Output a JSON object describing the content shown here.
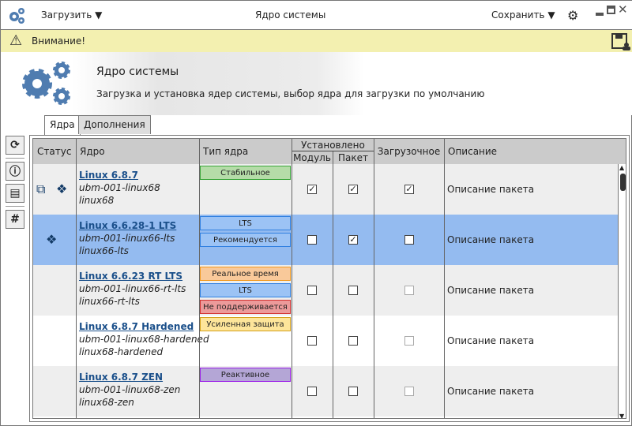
{
  "titlebar": {
    "load_menu": "Загрузить",
    "title": "Ядро системы",
    "save_menu": "Сохранить"
  },
  "warning": {
    "text": "Внимание!"
  },
  "header": {
    "title": "Ядро системы",
    "subtitle": "Загрузка и установка ядер системы, выбор ядра для загрузки по умолчанию"
  },
  "tabs": [
    {
      "label": "Ядра",
      "active": true
    },
    {
      "label": "Дополнения",
      "active": false
    }
  ],
  "table": {
    "columns": {
      "status": "Статус",
      "kernel": "Ядро",
      "type": "Тип ядра",
      "installed": "Установлено",
      "module": "Модуль",
      "package": "Пакет",
      "boot": "Загрузочное",
      "description": "Описание"
    },
    "rows": [
      {
        "name": "Linux 6.8.7",
        "pkg": "ubm-001-linux68",
        "short": "linux68",
        "status_icons": [
          "modules-icon",
          "package-icon"
        ],
        "badges": [
          {
            "label": "Стабильное",
            "bg": "#b5dca8",
            "border": "#3aa53a"
          }
        ],
        "module": true,
        "package": true,
        "boot": true,
        "boot_enabled": true,
        "description": "Описание пакета",
        "selected": false
      },
      {
        "name": "Linux 6.6.28-1 LTS",
        "pkg": "ubm-001-linux66-lts",
        "short": "linux66-lts",
        "status_icons": [
          "package-icon"
        ],
        "badges": [
          {
            "label": "LTS",
            "bg": "#9cc3f5",
            "border": "#2f7fe0"
          },
          {
            "label": "Рекомендуется",
            "bg": "#9cc3f5",
            "border": "#2f7fe0"
          }
        ],
        "module": false,
        "package": true,
        "boot": false,
        "boot_enabled": true,
        "description": "Описание пакета",
        "selected": true
      },
      {
        "name": "Linux 6.6.23 RT LTS",
        "pkg": "ubm-001-linux66-rt-lts",
        "short": "linux66-rt-lts",
        "status_icons": [],
        "badges": [
          {
            "label": "Реальное время",
            "bg": "#f9c99a",
            "border": "#f39a1e"
          },
          {
            "label": "LTS",
            "bg": "#9cc3f5",
            "border": "#2f7fe0"
          },
          {
            "label": "Не поддерживается",
            "bg": "#ec9a9a",
            "border": "#d23030"
          }
        ],
        "module": false,
        "package": false,
        "boot": false,
        "boot_enabled": false,
        "description": "Описание пакета",
        "selected": false
      },
      {
        "name": "Linux 6.8.7 Hardened",
        "pkg": "ubm-001-linux68-hardened",
        "short": "linux68-hardened",
        "status_icons": [],
        "badges": [
          {
            "label": "Усиленная защита",
            "bg": "#fde59a",
            "border": "#d4a017"
          }
        ],
        "module": false,
        "package": false,
        "boot": false,
        "boot_enabled": false,
        "description": "Описание пакета",
        "selected": false
      },
      {
        "name": "Linux 6.8.7 ZEN",
        "pkg": "ubm-001-linux68-zen",
        "short": "linux68-zen",
        "status_icons": [],
        "badges": [
          {
            "label": "Реактивное",
            "bg": "#b4a6d6",
            "border": "#9b1ee8"
          }
        ],
        "module": false,
        "package": false,
        "boot": false,
        "boot_enabled": false,
        "description": "Описание пакета",
        "selected": false
      }
    ]
  },
  "side_buttons": [
    "refresh-icon",
    "info-icon",
    "document-icon",
    "hash-icon"
  ],
  "colors": {
    "warning_bg": "#f3f0b0",
    "selected_row": "#94bbf0",
    "link": "#1a4f8a",
    "gear": "#4f7cb0"
  }
}
